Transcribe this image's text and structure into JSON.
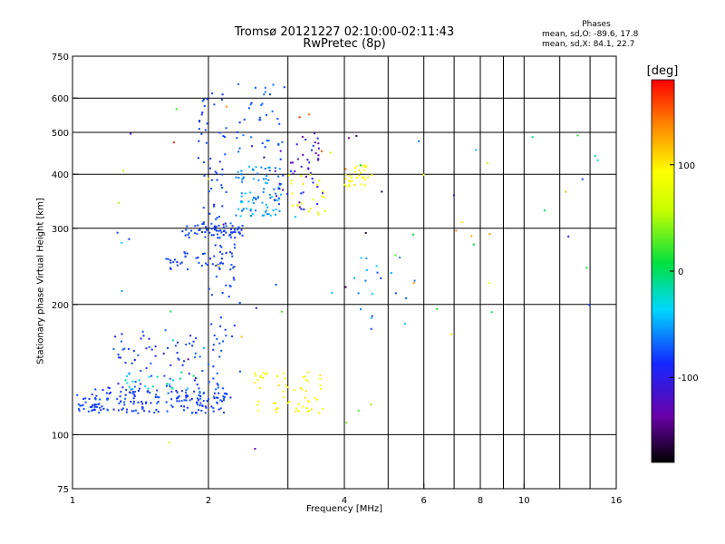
{
  "title_line1": "Tromsø 20121227 02:10:00-02:11:43",
  "title_line2": "RwPretec (8p)",
  "stats": {
    "header": "Phases",
    "line1": "mean, sd,O: -89.6, 17.8",
    "line2": "mean, sd,X:  84.1, 22.7"
  },
  "colorbar": {
    "label": "[deg]",
    "ticks": [
      {
        "value": 100,
        "label": "100"
      },
      {
        "value": 0,
        "label": "0"
      },
      {
        "value": -100,
        "label": "-100"
      }
    ]
  },
  "chart_data": {
    "type": "scatter",
    "title": "Tromsø 20121227 02:10:00-02:11:43",
    "subtitle": "RwPretec (8p)",
    "xlabel": "Frequency [MHz]",
    "ylabel": "Stationary phase Virtual Height [km]",
    "x_scale": "log",
    "y_scale": "log",
    "xlim": [
      1,
      16
    ],
    "ylim": [
      75,
      750
    ],
    "x_ticks": [
      1,
      2,
      4,
      6,
      8,
      10,
      16
    ],
    "x_tick_labels": [
      "1",
      "2",
      "4",
      "6",
      "8",
      "10",
      "16"
    ],
    "x_grid": [
      2,
      3,
      4,
      5,
      6,
      7,
      8,
      9,
      10,
      12,
      14
    ],
    "y_ticks": [
      75,
      100,
      200,
      300,
      400,
      500,
      600,
      750
    ],
    "y_tick_labels": [
      "75",
      "100",
      "200",
      "300",
      "400",
      "500",
      "600",
      "750"
    ],
    "y_grid": [
      100,
      200,
      300,
      400,
      500,
      600
    ],
    "color_scale": {
      "label": "[deg]",
      "min": -180,
      "max": 180
    },
    "clusters": [
      {
        "x": [
          1.0,
          1.15
        ],
        "y": [
          112,
          125
        ],
        "phase": [
          -95,
          -85
        ],
        "n": 25
      },
      {
        "x": [
          1.1,
          2.2
        ],
        "y": [
          112,
          128
        ],
        "phase": [
          -105,
          -80
        ],
        "n": 170
      },
      {
        "x": [
          1.2,
          2.2
        ],
        "y": [
          128,
          175
        ],
        "phase": [
          -110,
          -80
        ],
        "n": 80
      },
      {
        "x": [
          1.3,
          1.9
        ],
        "y": [
          125,
          140
        ],
        "phase": [
          -50,
          -5
        ],
        "n": 22
      },
      {
        "x": [
          1.75,
          2.4
        ],
        "y": [
          285,
          305
        ],
        "phase": [
          -100,
          -85
        ],
        "n": 60
      },
      {
        "x": [
          1.6,
          2.3
        ],
        "y": [
          240,
          265
        ],
        "phase": [
          -100,
          -85
        ],
        "n": 38
      },
      {
        "x": [
          1.9,
          2.2
        ],
        "y": [
          300,
          620
        ],
        "phase": [
          -100,
          -85
        ],
        "n": 55
      },
      {
        "x": [
          2.0,
          2.35
        ],
        "y": [
          120,
          300
        ],
        "phase": [
          -100,
          -85
        ],
        "n": 40
      },
      {
        "x": [
          2.3,
          2.9
        ],
        "y": [
          320,
          420
        ],
        "phase": [
          -80,
          -40
        ],
        "n": 90
      },
      {
        "x": [
          2.3,
          3.0
        ],
        "y": [
          430,
          650
        ],
        "phase": [
          -100,
          -70
        ],
        "n": 35
      },
      {
        "x": [
          2.8,
          3.6
        ],
        "y": [
          330,
          500
        ],
        "phase": [
          -140,
          -90
        ],
        "n": 50
      },
      {
        "x": [
          3.0,
          3.7
        ],
        "y": [
          320,
          400
        ],
        "phase": [
          70,
          110
        ],
        "n": 22
      },
      {
        "x": [
          4.0,
          4.6
        ],
        "y": [
          375,
          420
        ],
        "phase": [
          85,
          110
        ],
        "n": 32
      },
      {
        "x": [
          2.5,
          3.6
        ],
        "y": [
          112,
          140
        ],
        "phase": [
          85,
          110
        ],
        "n": 60
      },
      {
        "x": [
          4.2,
          5.5
        ],
        "y": [
          165,
          260
        ],
        "phase": [
          -100,
          -40
        ],
        "n": 18
      },
      {
        "x": [
          5.0,
          8.5
        ],
        "y": [
          170,
          500
        ],
        "phase": [
          -140,
          140
        ],
        "n": 18
      },
      {
        "x": [
          9.0,
          15.5
        ],
        "y": [
          175,
          500
        ],
        "phase": [
          -120,
          140
        ],
        "n": 10
      },
      {
        "x": [
          1.1,
          5.0
        ],
        "y": [
          80,
          600
        ],
        "phase": [
          -180,
          180
        ],
        "n": 45
      }
    ]
  }
}
